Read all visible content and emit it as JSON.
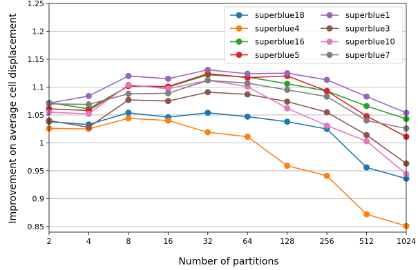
{
  "chart_data": {
    "type": "line",
    "title": "",
    "xlabel": "Number of partitions",
    "ylabel": "Improvement on average cell displacement",
    "x": [
      "2",
      "4",
      "8",
      "16",
      "32",
      "64",
      "128",
      "256",
      "512",
      "1024"
    ],
    "ylim": [
      0.84,
      1.25
    ],
    "yticks": [
      0.85,
      0.9,
      0.95,
      1,
      1.05,
      1.1,
      1.15,
      1.2,
      1.25
    ],
    "ytick_labels": [
      "0.85",
      "0.9",
      "0.95",
      "1",
      "1.05",
      "1.1",
      "1.15",
      "1.2",
      "1.25"
    ],
    "grid": "horizontal",
    "legend_position": "top-right",
    "series": [
      {
        "name": "superblue18",
        "color": "#1f77b4",
        "values": [
          1.038,
          1.033,
          1.054,
          1.046,
          1.054,
          1.047,
          1.038,
          1.025,
          0.956,
          0.936
        ]
      },
      {
        "name": "superblue4",
        "color": "#ff7f0e",
        "values": [
          1.026,
          1.025,
          1.044,
          1.04,
          1.019,
          1.011,
          0.959,
          0.941,
          0.872,
          0.851
        ]
      },
      {
        "name": "superblue16",
        "color": "#2ca02c",
        "values": [
          1.072,
          1.061,
          1.102,
          1.1,
          1.122,
          1.118,
          1.106,
          1.093,
          1.066,
          1.043
        ]
      },
      {
        "name": "superblue5",
        "color": "#d62728",
        "values": [
          1.061,
          1.058,
          1.102,
          1.101,
          1.124,
          1.117,
          1.12,
          1.093,
          1.048,
          1.011
        ]
      },
      {
        "name": "superblue1",
        "color": "#9467bd",
        "values": [
          1.071,
          1.084,
          1.12,
          1.115,
          1.131,
          1.124,
          1.125,
          1.113,
          1.083,
          1.054
        ]
      },
      {
        "name": "superblue3",
        "color": "#8c564b",
        "values": [
          1.04,
          1.028,
          1.077,
          1.075,
          1.091,
          1.087,
          1.074,
          1.055,
          1.014,
          0.963
        ]
      },
      {
        "name": "superblue10",
        "color": "#e377c2",
        "values": [
          1.055,
          1.052,
          1.104,
          1.097,
          1.112,
          1.101,
          1.062,
          1.031,
          1.003,
          0.944
        ]
      },
      {
        "name": "superblue7",
        "color": "#7f7f7f",
        "values": [
          1.07,
          1.069,
          1.088,
          1.089,
          1.112,
          1.107,
          1.095,
          1.083,
          1.04,
          1.026
        ]
      }
    ]
  }
}
